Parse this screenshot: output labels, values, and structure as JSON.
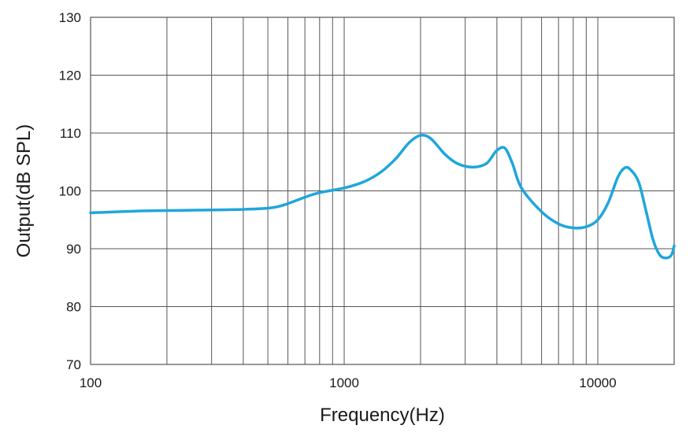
{
  "chart_data": {
    "type": "line",
    "title": "",
    "xlabel": "Frequency(Hz)",
    "ylabel": "Output(dB SPL)",
    "x_scale": "log",
    "xlim": [
      100,
      20000
    ],
    "ylim": [
      70,
      130
    ],
    "x_tick_labels": [
      {
        "value": 100,
        "label": "100"
      },
      {
        "value": 1000,
        "label": "1000"
      },
      {
        "value": 10000,
        "label": "10000"
      }
    ],
    "y_ticks": [
      70,
      80,
      90,
      100,
      110,
      120,
      130
    ],
    "grid": true,
    "legend": "none",
    "line_color": "#1fa6dc",
    "series": [
      {
        "x": [
          100,
          150,
          200,
          300,
          400,
          500,
          550,
          600,
          700,
          800,
          1000,
          1200,
          1400,
          1600,
          1800,
          2000,
          2200,
          2500,
          2800,
          3200,
          3600,
          3800,
          4000,
          4300,
          4600,
          5000,
          6000,
          7000,
          8000,
          9000,
          10000,
          11000,
          12000,
          12800,
          13500,
          14500,
          15500,
          16500,
          17500,
          18500,
          19500,
          20000
        ],
        "y": [
          96.2,
          96.5,
          96.6,
          96.7,
          96.8,
          97.0,
          97.3,
          97.8,
          98.9,
          99.7,
          100.5,
          101.6,
          103.3,
          105.6,
          108.3,
          109.6,
          109.0,
          106.3,
          104.7,
          104.1,
          104.6,
          105.7,
          107.0,
          107.4,
          104.8,
          100.5,
          96.4,
          94.3,
          93.6,
          93.8,
          95.0,
          98.0,
          102.4,
          104.0,
          103.6,
          101.5,
          96.5,
          91.6,
          89.0,
          88.4,
          88.9,
          90.5
        ]
      }
    ]
  }
}
